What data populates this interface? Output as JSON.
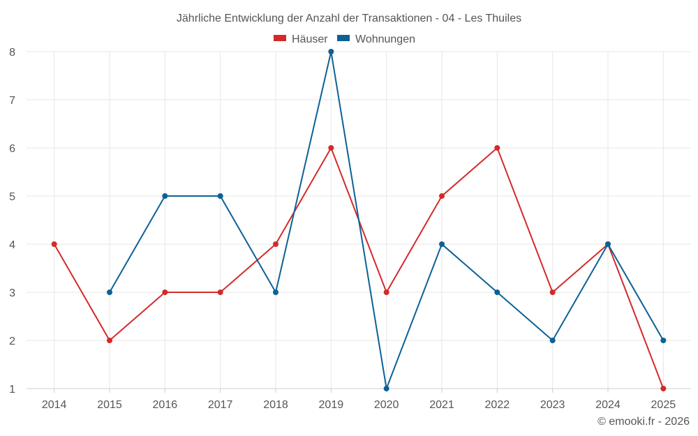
{
  "chart_data": {
    "type": "line",
    "title": "Jährliche Entwicklung der Anzahl der Transaktionen - 04 - Les Thuiles",
    "categories": [
      "2014",
      "2015",
      "2016",
      "2017",
      "2018",
      "2019",
      "2020",
      "2021",
      "2022",
      "2023",
      "2024",
      "2025"
    ],
    "ylim": [
      1,
      8
    ],
    "yticks": [
      1,
      2,
      3,
      4,
      5,
      6,
      7,
      8
    ],
    "grid": true,
    "legend_position": "top-center",
    "series": [
      {
        "name": "Häuser",
        "color": "#d42a2a",
        "values": [
          4,
          2,
          3,
          3,
          4,
          6,
          3,
          5,
          6,
          3,
          4,
          1
        ]
      },
      {
        "name": "Wohnungen",
        "color": "#0c6196",
        "values": [
          null,
          3,
          5,
          5,
          3,
          8,
          1,
          4,
          3,
          2,
          4,
          2
        ]
      }
    ]
  },
  "credit": "© emooki.fr - 2026"
}
